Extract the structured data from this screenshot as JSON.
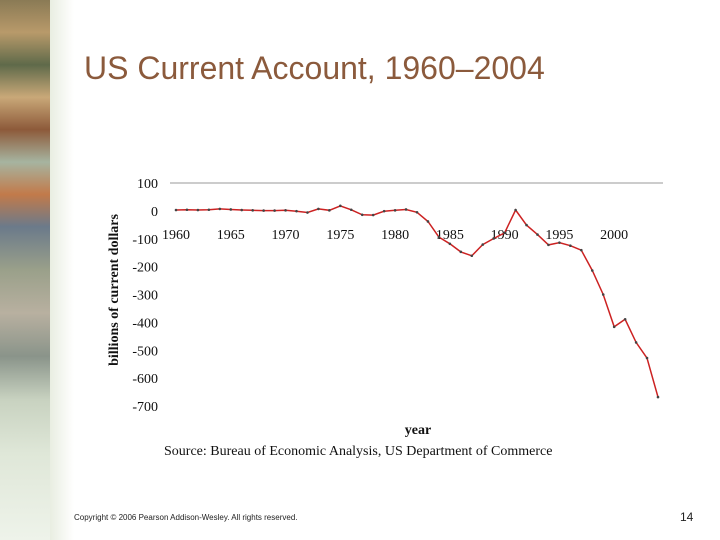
{
  "slide": {
    "title": "US Current Account, 1960–2004",
    "copyright": "Copyright © 2006 Pearson Addison-Wesley. All rights reserved.",
    "page_number": "14"
  },
  "chart_data": {
    "type": "line",
    "xlabel": "year",
    "ylabel": "billions of current dollars",
    "source": "Source:  Bureau of Economic Analysis, US Department of Commerce",
    "ylim": [
      -700,
      100
    ],
    "xlim": [
      1960,
      2004
    ],
    "y_ticks": [
      "100",
      "0",
      "-100",
      "-200",
      "-300",
      "-400",
      "-500",
      "-600",
      "-700"
    ],
    "y_tick_values": [
      100,
      0,
      -100,
      -200,
      -300,
      -400,
      -500,
      -600,
      -700
    ],
    "x_ticks": [
      "1960",
      "1965",
      "1970",
      "1975",
      "1980",
      "1985",
      "1990",
      "1995",
      "2000"
    ],
    "x_tick_values": [
      1960,
      1965,
      1970,
      1975,
      1980,
      1985,
      1990,
      1995,
      2000
    ],
    "grid": false,
    "line_color": "#cc2222",
    "marker_color": "#444444",
    "series": [
      {
        "x": [
          1960,
          1961,
          1962,
          1963,
          1964,
          1965,
          1966,
          1967,
          1968,
          1969,
          1970,
          1971,
          1972,
          1973,
          1974,
          1975,
          1976,
          1977,
          1978,
          1979,
          1980,
          1981,
          1982,
          1983,
          1984,
          1985,
          1986,
          1987,
          1988,
          1989,
          1990,
          1991,
          1992,
          1993,
          1994,
          1995,
          1996,
          1997,
          1998,
          1999,
          2000,
          2001,
          2002,
          2003,
          2004
        ],
        "y": [
          3,
          4,
          3,
          4,
          7,
          5,
          3,
          2,
          1,
          1,
          2,
          -1,
          -6,
          7,
          2,
          18,
          4,
          -14,
          -15,
          -1,
          2,
          5,
          -5,
          -38,
          -94,
          -118,
          -147,
          -161,
          -121,
          -99,
          -79,
          3,
          -51,
          -85,
          -122,
          -114,
          -125,
          -141,
          -214,
          -300,
          -416,
          -389,
          -472,
          -528,
          -668
        ]
      }
    ]
  }
}
